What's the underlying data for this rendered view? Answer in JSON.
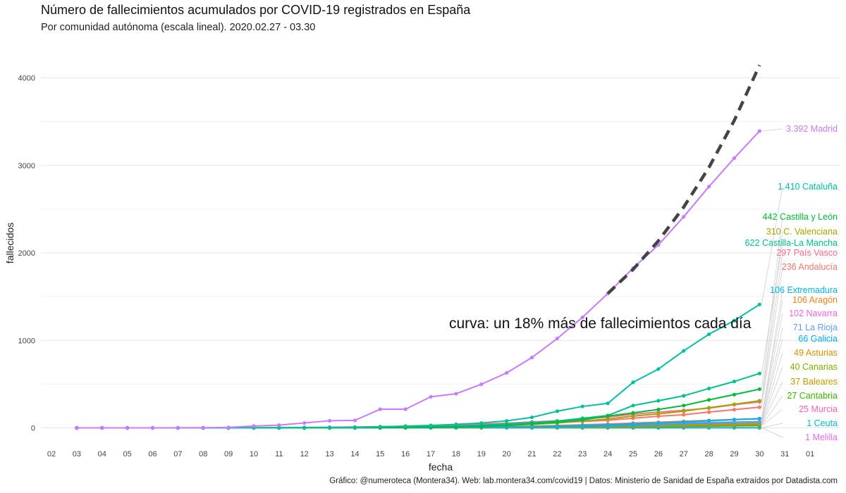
{
  "title": "Número de fallecimientos acumulados por COVID-19 registrados en España",
  "subtitle": "Por comunidad autónoma (escala lineal). 2020.02.27 - 03.30",
  "caption": "Gráfico: @numeroteca (Montera34). Web: lab.montera34.com/covid19 | Datos: Ministerio de Sanidad de España extraídos por Datadista.com",
  "chart_data": {
    "type": "line",
    "xlabel": "fecha",
    "ylabel": "fallecidos",
    "x_ticks": [
      "02",
      "03",
      "04",
      "05",
      "06",
      "07",
      "08",
      "09",
      "10",
      "11",
      "12",
      "13",
      "14",
      "15",
      "16",
      "17",
      "18",
      "19",
      "20",
      "21",
      "22",
      "23",
      "24",
      "25",
      "26",
      "27",
      "28",
      "29",
      "30",
      "31",
      "01"
    ],
    "ylim": [
      -200,
      4350
    ],
    "y_ticks": [
      0,
      1000,
      2000,
      3000,
      4000
    ],
    "grid": true,
    "legend": "none",
    "x": [
      "03",
      "04",
      "05",
      "06",
      "07",
      "08",
      "09",
      "10",
      "11",
      "12",
      "13",
      "14",
      "15",
      "16",
      "17",
      "18",
      "19",
      "20",
      "21",
      "22",
      "23",
      "24",
      "25",
      "26",
      "27",
      "28",
      "29",
      "30"
    ],
    "series": [
      {
        "name": "Madrid",
        "label": "3.392 Madrid",
        "color": "#C77CFF",
        "values": [
          0,
          0,
          0,
          0,
          1,
          2,
          5,
          21,
          31,
          56,
          81,
          86,
          213,
          213,
          355,
          390,
          498,
          628,
          804,
          1021,
          1263,
          1535,
          1825,
          2090,
          2412,
          2757,
          3082,
          3392
        ]
      },
      {
        "name": "Cataluña",
        "label": "1.410 Cataluña",
        "color": "#00BFA0",
        "values": [
          0,
          0,
          0,
          0,
          0,
          0,
          0,
          1,
          2,
          3,
          5,
          6,
          12,
          20,
          28,
          40,
          55,
          80,
          120,
          190,
          245,
          280,
          520,
          672,
          880,
          1070,
          1226,
          1410
        ]
      },
      {
        "name": "Castilla y León",
        "label": "442 Castilla y León",
        "color": "#00BA38",
        "values": [
          0,
          0,
          0,
          0,
          0,
          0,
          0,
          0,
          0,
          1,
          1,
          2,
          3,
          5,
          8,
          12,
          18,
          28,
          45,
          65,
          92,
          135,
          171,
          210,
          255,
          320,
          380,
          442
        ]
      },
      {
        "name": "C. Valenciana",
        "label": "310 C. Valenciana",
        "color": "#A3A500",
        "values": [
          0,
          0,
          0,
          0,
          0,
          0,
          0,
          0,
          1,
          1,
          2,
          3,
          4,
          6,
          9,
          13,
          18,
          28,
          40,
          55,
          80,
          101,
          134,
          160,
          190,
          230,
          270,
          310
        ]
      },
      {
        "name": "Castilla-La Mancha",
        "label": "622 Castilla-La Mancha",
        "color": "#00C08B",
        "values": [
          0,
          0,
          0,
          0,
          0,
          0,
          0,
          0,
          0,
          1,
          2,
          3,
          5,
          8,
          12,
          20,
          30,
          45,
          60,
          78,
          110,
          141,
          255,
          310,
          366,
          450,
          530,
          622
        ]
      },
      {
        "name": "País Vasco",
        "label": "297 País Vasco",
        "color": "#FF6C91",
        "values": [
          0,
          0,
          0,
          0,
          0,
          0,
          1,
          2,
          3,
          5,
          7,
          10,
          14,
          18,
          23,
          32,
          43,
          52,
          68,
          80,
          103,
          123,
          155,
          180,
          200,
          225,
          265,
          297
        ]
      },
      {
        "name": "Andalucía",
        "label": "236 Andalucía",
        "color": "#F8766D",
        "values": [
          0,
          0,
          0,
          0,
          0,
          0,
          0,
          0,
          1,
          2,
          3,
          4,
          6,
          8,
          12,
          18,
          24,
          32,
          45,
          58,
          73,
          86,
          110,
          133,
          150,
          180,
          208,
          236
        ]
      },
      {
        "name": "Extremadura",
        "label": "106 Extremadura",
        "color": "#00B4EF",
        "values": [
          0,
          0,
          0,
          0,
          0,
          0,
          0,
          0,
          0,
          0,
          0,
          0,
          1,
          2,
          3,
          5,
          7,
          10,
          14,
          20,
          26,
          33,
          44,
          55,
          66,
          80,
          94,
          106
        ]
      },
      {
        "name": "Aragón",
        "label": "106 Aragón",
        "color": "#E7861B",
        "values": [
          0,
          0,
          0,
          0,
          0,
          0,
          0,
          0,
          0,
          0,
          1,
          1,
          2,
          3,
          4,
          6,
          9,
          13,
          18,
          24,
          31,
          39,
          50,
          62,
          74,
          85,
          96,
          106
        ]
      },
      {
        "name": "Navarra",
        "label": "102 Navarra",
        "color": "#F564E3",
        "values": [
          0,
          0,
          0,
          0,
          0,
          0,
          0,
          0,
          0,
          0,
          0,
          1,
          2,
          3,
          5,
          7,
          10,
          14,
          20,
          27,
          35,
          44,
          55,
          64,
          74,
          85,
          95,
          102
        ]
      },
      {
        "name": "La Rioja",
        "label": "71 La Rioja",
        "color": "#619CFF",
        "values": [
          0,
          0,
          0,
          0,
          0,
          0,
          0,
          0,
          1,
          1,
          1,
          2,
          3,
          4,
          5,
          7,
          9,
          12,
          16,
          21,
          26,
          32,
          40,
          47,
          54,
          61,
          66,
          71
        ]
      },
      {
        "name": "Galicia",
        "label": "66 Galicia",
        "color": "#00A9FF",
        "values": [
          0,
          0,
          0,
          0,
          0,
          0,
          0,
          0,
          0,
          0,
          0,
          0,
          1,
          1,
          2,
          3,
          5,
          7,
          10,
          14,
          18,
          24,
          32,
          40,
          48,
          55,
          61,
          66
        ]
      },
      {
        "name": "Asturias",
        "label": "49 Asturias",
        "color": "#D89000",
        "values": [
          0,
          0,
          0,
          0,
          0,
          0,
          0,
          0,
          0,
          0,
          0,
          0,
          1,
          1,
          2,
          3,
          4,
          6,
          9,
          12,
          16,
          20,
          26,
          31,
          36,
          41,
          45,
          49
        ]
      },
      {
        "name": "Canarias",
        "label": "40 Canarias",
        "color": "#7CAE00",
        "values": [
          0,
          0,
          0,
          0,
          0,
          0,
          0,
          0,
          0,
          0,
          0,
          0,
          1,
          1,
          1,
          2,
          3,
          4,
          6,
          8,
          11,
          14,
          19,
          23,
          28,
          32,
          36,
          40
        ]
      },
      {
        "name": "Baleares",
        "label": "37 Baleares",
        "color": "#C59900",
        "values": [
          0,
          0,
          0,
          0,
          0,
          0,
          0,
          0,
          0,
          0,
          0,
          0,
          0,
          1,
          1,
          2,
          3,
          4,
          5,
          7,
          10,
          13,
          17,
          21,
          25,
          29,
          33,
          37
        ]
      },
      {
        "name": "Cantabria",
        "label": "27 Cantabria",
        "color": "#39B600",
        "values": [
          0,
          0,
          0,
          0,
          0,
          0,
          0,
          0,
          0,
          0,
          0,
          0,
          0,
          0,
          1,
          1,
          2,
          3,
          4,
          6,
          8,
          10,
          13,
          16,
          19,
          22,
          25,
          27
        ]
      },
      {
        "name": "Murcia",
        "label": "25 Murcia",
        "color": "#FF62BC",
        "values": [
          0,
          0,
          0,
          0,
          0,
          0,
          0,
          0,
          0,
          0,
          0,
          0,
          0,
          0,
          1,
          1,
          2,
          3,
          4,
          5,
          7,
          9,
          11,
          14,
          16,
          19,
          22,
          25
        ]
      },
      {
        "name": "Ceuta",
        "label": "1 Ceuta",
        "color": "#00BFC4",
        "values": [
          0,
          0,
          0,
          0,
          0,
          0,
          0,
          0,
          0,
          0,
          0,
          0,
          0,
          0,
          0,
          0,
          0,
          0,
          0,
          0,
          0,
          0,
          0,
          0,
          1,
          1,
          1,
          1
        ]
      },
      {
        "name": "Melilla",
        "label": "1 Melilla",
        "color": "#E76BF3",
        "values": [
          0,
          0,
          0,
          0,
          0,
          0,
          0,
          0,
          0,
          0,
          0,
          0,
          0,
          0,
          0,
          0,
          0,
          0,
          0,
          0,
          0,
          0,
          0,
          1,
          1,
          1,
          1,
          1
        ]
      }
    ],
    "reference_curve": {
      "label": "curva: un 18% más de fallecimientos cada día",
      "color": "#444444",
      "style": "dashed",
      "x": [
        "24",
        "25",
        "26",
        "27",
        "28",
        "29",
        "30"
      ],
      "values": [
        1535,
        1811,
        2137,
        2522,
        2976,
        3512,
        4144
      ]
    }
  }
}
